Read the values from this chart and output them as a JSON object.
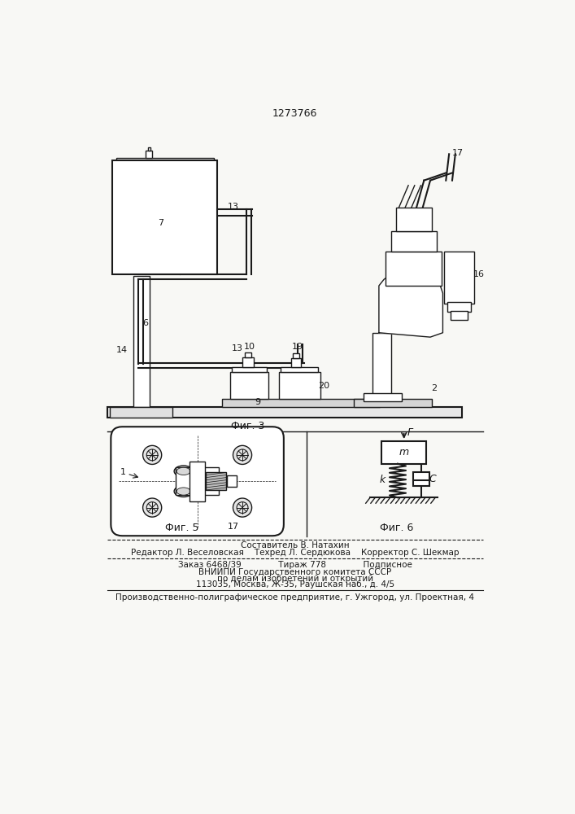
{
  "patent_number": "1273766",
  "fig3_label": "Фиг. 3",
  "fig5_label": "Фиг. 5",
  "fig6_label": "Фиг. 6",
  "bg_color": "#f8f8f5",
  "line_color": "#1a1a1a",
  "footer_line1": "Составитель В. Натахин",
  "footer_line2": "Редактор Л. Веселовская    Техред Л. Сердюкова    Корректор С. Шекмар",
  "footer_line3": "Заказ 6468/39              Тираж 778              Подписное",
  "footer_line4": "ВНИИПИ Государственного комитета СССР",
  "footer_line5": "по делам изобретений и открытий",
  "footer_line6": "113035, Москва, Ж-35, Раушская наб., д. 4/5",
  "footer_line7": "Производственно-полиграфическое предприятие, г. Ужгород, ул. Проектная, 4"
}
